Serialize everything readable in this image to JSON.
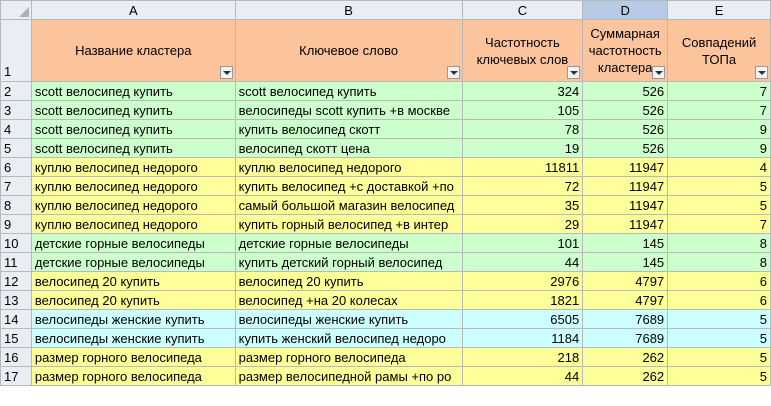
{
  "columns": [
    "A",
    "B",
    "C",
    "D",
    "E"
  ],
  "header_row": {
    "row_number": "1",
    "cells": [
      "Название кластера",
      "Ключевое слово",
      "Частотность ключевых слов",
      "Суммарная частотность кластера",
      "Совпадений ТОПа"
    ]
  },
  "row_colors": {
    "green": "#ccffcc",
    "yellow": "#ffff99",
    "cyan": "#ccffff",
    "header": "#fcc49c"
  },
  "rows": [
    {
      "n": "2",
      "cluster": "scott велосипед купить",
      "keyword": "scott велосипед купить",
      "freq": "324",
      "total": "526",
      "top": "7",
      "color": "g"
    },
    {
      "n": "3",
      "cluster": "scott велосипед купить",
      "keyword": "велосипеды scott купить +в москве",
      "freq": "105",
      "total": "526",
      "top": "7",
      "color": "g"
    },
    {
      "n": "4",
      "cluster": "scott велосипед купить",
      "keyword": "купить велосипед скотт",
      "freq": "78",
      "total": "526",
      "top": "9",
      "color": "g"
    },
    {
      "n": "5",
      "cluster": "scott велосипед купить",
      "keyword": "велосипед скотт цена",
      "freq": "19",
      "total": "526",
      "top": "9",
      "color": "g"
    },
    {
      "n": "6",
      "cluster": "куплю велосипед недорого",
      "keyword": "куплю велосипед недорого",
      "freq": "11811",
      "total": "11947",
      "top": "4",
      "color": "y"
    },
    {
      "n": "7",
      "cluster": "куплю велосипед недорого",
      "keyword": "купить велосипед +с доставкой +по",
      "freq": "72",
      "total": "11947",
      "top": "5",
      "color": "y"
    },
    {
      "n": "8",
      "cluster": "куплю велосипед недорого",
      "keyword": "самый большой магазин велосипед",
      "freq": "35",
      "total": "11947",
      "top": "5",
      "color": "y"
    },
    {
      "n": "9",
      "cluster": "куплю велосипед недорого",
      "keyword": "купить горный велосипед +в интер",
      "freq": "29",
      "total": "11947",
      "top": "7",
      "color": "y"
    },
    {
      "n": "10",
      "cluster": "детские горные велосипеды",
      "keyword": "детские горные велосипеды",
      "freq": "101",
      "total": "145",
      "top": "8",
      "color": "g"
    },
    {
      "n": "11",
      "cluster": "детские горные велосипеды",
      "keyword": "купить детский горный велосипед",
      "freq": "44",
      "total": "145",
      "top": "8",
      "color": "g"
    },
    {
      "n": "12",
      "cluster": "велосипед 20 купить",
      "keyword": "велосипед 20 купить",
      "freq": "2976",
      "total": "4797",
      "top": "6",
      "color": "y"
    },
    {
      "n": "13",
      "cluster": "велосипед 20 купить",
      "keyword": "велосипед +на 20 колесах",
      "freq": "1821",
      "total": "4797",
      "top": "6",
      "color": "y"
    },
    {
      "n": "14",
      "cluster": "велосипеды женские купить",
      "keyword": "велосипеды женские купить",
      "freq": "6505",
      "total": "7689",
      "top": "5",
      "color": "b"
    },
    {
      "n": "15",
      "cluster": "велосипеды женские купить",
      "keyword": "купить женский велосипед недоро",
      "freq": "1184",
      "total": "7689",
      "top": "5",
      "color": "b"
    },
    {
      "n": "16",
      "cluster": "размер горного велосипеда",
      "keyword": "размер горного велосипеда",
      "freq": "218",
      "total": "262",
      "top": "5",
      "color": "y"
    },
    {
      "n": "17",
      "cluster": "размер горного велосипеда",
      "keyword": "размер велосипедной рамы +по ро",
      "freq": "44",
      "total": "262",
      "top": "5",
      "color": "y"
    }
  ]
}
